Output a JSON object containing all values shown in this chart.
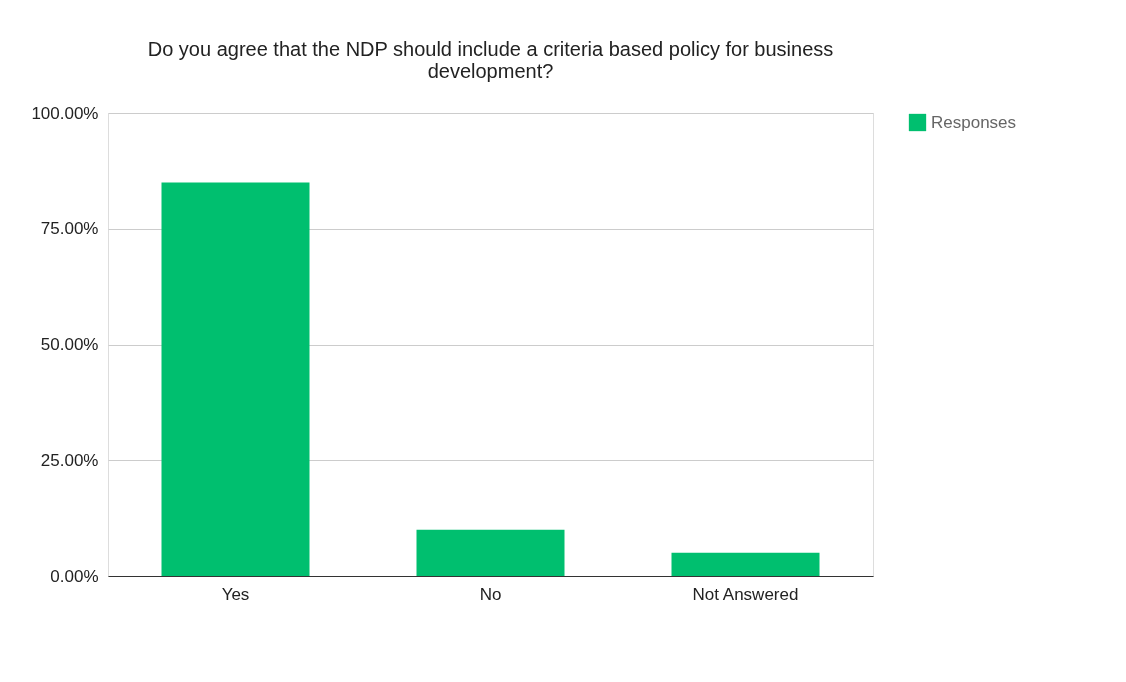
{
  "chart_data": {
    "type": "bar",
    "title": "Do you agree that the NDP should include a criteria based policy for business development?",
    "categories": [
      "Yes",
      "No",
      "Not Answered"
    ],
    "series": [
      {
        "name": "Responses",
        "color": "#00bf6f",
        "values": [
          85,
          10,
          5
        ]
      }
    ],
    "ylim": [
      0,
      100
    ],
    "yticks": [
      {
        "value": 0,
        "label": "0.00%"
      },
      {
        "value": 25,
        "label": "25.00%"
      },
      {
        "value": 50,
        "label": "50.00%"
      },
      {
        "value": 75,
        "label": "75.00%"
      },
      {
        "value": 100,
        "label": "100.00%"
      }
    ],
    "grid": "y",
    "legend": "top right"
  }
}
